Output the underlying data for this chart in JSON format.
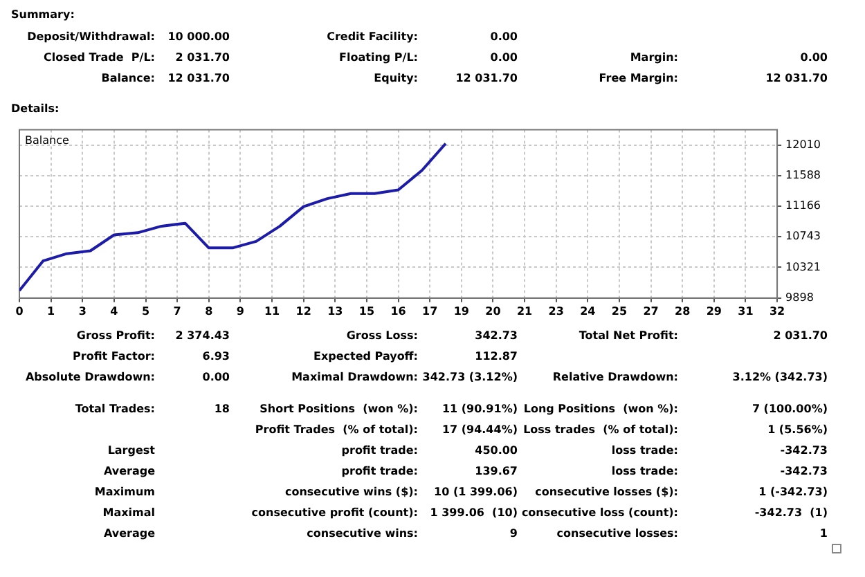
{
  "chart_data": [
    {
      "type": "other",
      "title": "Summary:",
      "cell_labels": [
        [
          "Deposit/Withdrawal:",
          "10 000.00",
          "Credit Facility:",
          "0.00",
          null,
          null
        ],
        [
          "Closed Trade  P/L:",
          "2 031.70",
          "Floating P/L:",
          "0.00",
          "Margin:",
          "0.00"
        ],
        [
          "Balance:",
          "12 031.70",
          "Equity:",
          "12 031.70",
          "Free Margin:",
          "12 031.70"
        ]
      ]
    },
    {
      "type": "line",
      "title": "Details:",
      "x": [
        0,
        1,
        2,
        3,
        4,
        5,
        6,
        7,
        8,
        9,
        10,
        11,
        12,
        13,
        14,
        15,
        16,
        17,
        18
      ],
      "series": [
        {
          "name": "Balance",
          "color": "#1c1ca8",
          "values": [
            10000,
            10410,
            10510,
            10550,
            10770,
            10800,
            10890,
            10930,
            10590,
            10590,
            10680,
            10890,
            11160,
            11270,
            11340,
            11340,
            11390,
            11660,
            12030
          ]
        }
      ],
      "xlim": [
        0,
        32
      ],
      "xticks": [
        0,
        {
          "value": 1.333,
          "label": "1"
        },
        {
          "value": 2.667,
          "label": "3"
        },
        4,
        {
          "value": 5.333,
          "label": "5"
        },
        {
          "value": 6.667,
          "label": "7"
        },
        8,
        {
          "value": 9.333,
          "label": "9"
        },
        {
          "value": 10.667,
          "label": "11"
        },
        12,
        {
          "value": 13.333,
          "label": "13"
        },
        {
          "value": 14.667,
          "label": "15"
        },
        16,
        {
          "value": 17.333,
          "label": "17"
        },
        {
          "value": 18.667,
          "label": "19"
        },
        20,
        {
          "value": 21.333,
          "label": "21"
        },
        {
          "value": 22.667,
          "label": "23"
        },
        24,
        {
          "value": 25.333,
          "label": "25"
        },
        {
          "value": 26.667,
          "label": "27"
        },
        28,
        {
          "value": 29.333,
          "label": "29"
        },
        {
          "value": 30.667,
          "label": "31"
        },
        32
      ],
      "ylim": [
        9898,
        12220
      ],
      "yticks": [
        9898,
        10321,
        10743,
        11166,
        11588,
        12010
      ],
      "grid": true,
      "legend": "top left",
      "marker": "none",
      "line_style": "solid"
    },
    {
      "type": "other",
      "cell_labels": [
        [
          "Gross Profit:",
          "2 374.43",
          "Gross Loss:",
          "342.73",
          "Total Net Profit:",
          "2 031.70"
        ],
        [
          "Profit Factor:",
          "6.93",
          "Expected Payoff:",
          "112.87",
          null,
          null
        ],
        [
          "Absolute Drawdown:",
          "0.00",
          "Maximal Drawdown:",
          "342.73 (3.12%)",
          "Relative Drawdown:",
          "3.12% (342.73)"
        ],
        [
          null,
          null,
          null,
          null,
          null,
          null
        ],
        [
          "Total Trades:",
          "18",
          "Short Positions  (won %):",
          "11 (90.91%)",
          "Long Positions  (won %):",
          "7 (100.00%)"
        ],
        [
          null,
          null,
          "Profit Trades  (% of total):",
          "17 (94.44%)",
          "Loss trades  (% of total):",
          "1 (5.56%)"
        ],
        [
          "Largest",
          null,
          "profit trade:",
          "450.00",
          "loss trade:",
          "-342.73"
        ],
        [
          "Average",
          null,
          "profit trade:",
          "139.67",
          "loss trade:",
          "-342.73"
        ],
        [
          "Maximum",
          null,
          "consecutive wins ($):",
          "10 (1 399.06)",
          "consecutive losses ($):",
          "1 (-342.73)"
        ],
        [
          "Maximal",
          null,
          "consecutive profit (count):",
          "1 399.06  (10)",
          "consecutive loss (count):",
          "-342.73  (1)"
        ],
        [
          "Average",
          null,
          "consecutive wins:",
          "9",
          "consecutive losses:",
          "1"
        ]
      ]
    }
  ]
}
